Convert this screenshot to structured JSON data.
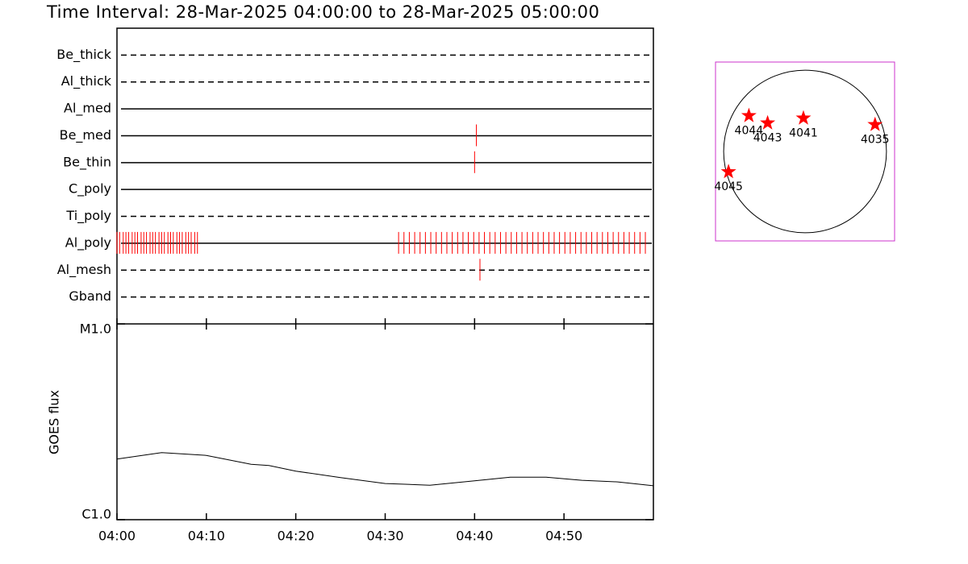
{
  "chart_data": [
    {
      "type": "timeline",
      "title": "Time Interval: 28-Mar-2025 04:00:00 to 28-Mar-2025 05:00:00",
      "categories": [
        "Be_thick",
        "Al_thick",
        "Al_med",
        "Be_med",
        "Be_thin",
        "C_poly",
        "Ti_poly",
        "Al_poly",
        "Al_mesh",
        "Gband"
      ],
      "line_styles": [
        "dashed",
        "dashed",
        "solid",
        "solid",
        "solid",
        "solid",
        "dashed",
        "solid",
        "dashed",
        "dashed"
      ],
      "observations": [
        [],
        [],
        [],
        [
          40.2
        ],
        [
          40.0
        ],
        [],
        [],
        [
          0,
          0.3,
          0.7,
          1.0,
          1.3,
          1.7,
          2.0,
          2.3,
          2.7,
          3.0,
          3.3,
          3.7,
          4.0,
          4.3,
          4.7,
          5.0,
          5.3,
          5.7,
          6.0,
          6.3,
          6.7,
          7.0,
          7.3,
          7.7,
          8.0,
          8.3,
          8.7,
          9.0,
          31.5,
          32.1,
          32.7,
          33.3,
          33.9,
          34.5,
          35.1,
          35.7,
          36.3,
          36.9,
          37.5,
          38.1,
          38.7,
          39.3,
          39.9,
          40.5,
          41.1,
          41.7,
          42.3,
          42.9,
          43.5,
          44.1,
          44.7,
          45.3,
          45.9,
          46.5,
          47.1,
          47.7,
          48.3,
          48.9,
          49.5,
          50.1,
          50.7,
          51.3,
          51.9,
          52.5,
          53.1,
          53.7,
          54.3,
          54.9,
          55.5,
          56.1,
          56.7,
          57.3,
          57.9,
          58.5,
          59.1
        ],
        [
          40.6
        ],
        []
      ],
      "color": "#ff0000",
      "xlim": [
        0,
        60
      ]
    },
    {
      "type": "line",
      "ylabel": "GOES flux",
      "x": [
        0,
        5,
        10,
        15,
        17,
        20,
        25,
        30,
        35,
        40,
        44,
        48,
        52,
        56,
        60
      ],
      "values": [
        2.04e-06,
        2.2e-06,
        2.13e-06,
        1.92e-06,
        1.89e-06,
        1.77e-06,
        1.64e-06,
        1.53e-06,
        1.5e-06,
        1.58e-06,
        1.65e-06,
        1.65e-06,
        1.59e-06,
        1.56e-06,
        1.49e-06
      ],
      "color": "#000000",
      "log_y": true,
      "xlim": [
        0,
        60
      ],
      "xticks": [
        {
          "value": 0,
          "label": "04:00"
        },
        {
          "value": 10,
          "label": "04:10"
        },
        {
          "value": 20,
          "label": "04:20"
        },
        {
          "value": 30,
          "label": "04:30"
        },
        {
          "value": 40,
          "label": "04:40"
        },
        {
          "value": 50,
          "label": "04:50"
        }
      ],
      "ylim": [
        1e-06,
        1e-05
      ],
      "yticks": [
        {
          "value": 1e-06,
          "label": "C1.0"
        },
        {
          "value": 1e-05,
          "label": "M1.0"
        }
      ]
    },
    {
      "type": "scatter",
      "labels": [
        "4044",
        "4043",
        "4041",
        "4035",
        "4045"
      ],
      "x": [
        -0.69,
        -0.46,
        -0.02,
        0.86,
        -0.94
      ],
      "y": [
        0.44,
        0.35,
        0.41,
        0.33,
        -0.25
      ],
      "color": "#ff0000",
      "frame_color": "#cc33cc",
      "xlim": [
        -1.1,
        1.1
      ],
      "ylim": [
        -1.1,
        1.1
      ]
    }
  ]
}
